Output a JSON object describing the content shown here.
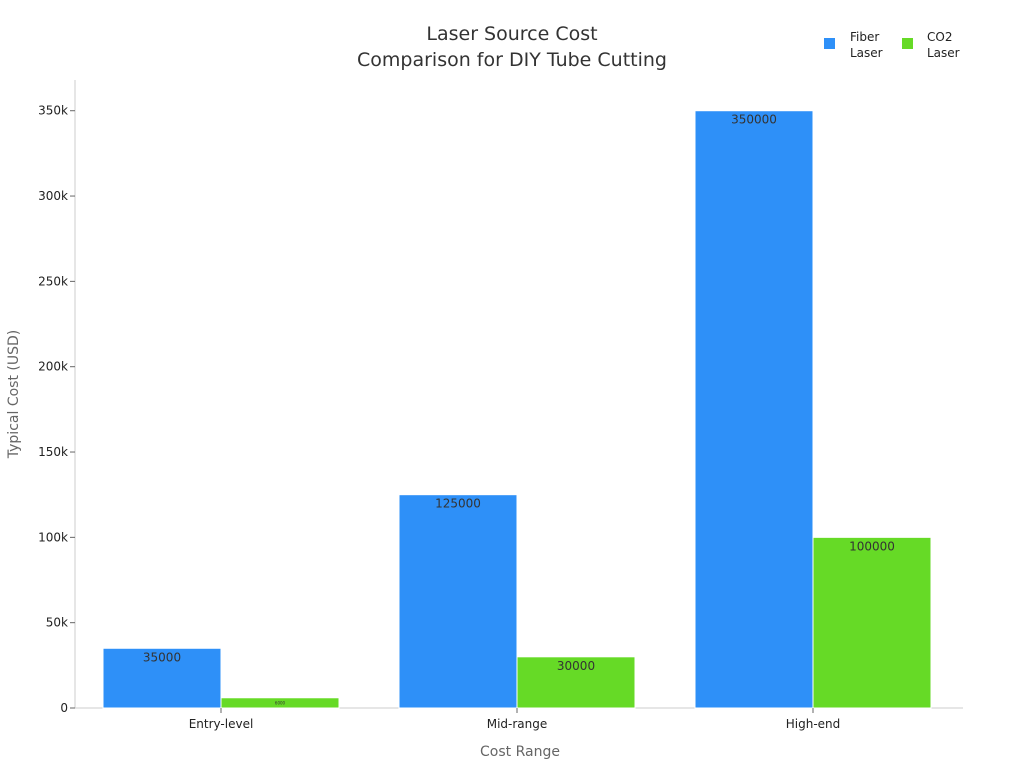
{
  "chart_data": {
    "type": "bar",
    "title_lines": [
      "Laser Source Cost",
      "Comparison for DIY Tube Cutting"
    ],
    "xlabel": "Cost Range",
    "ylabel": "Typical Cost (USD)",
    "categories": [
      "Entry-level",
      "Mid-range",
      "High-end"
    ],
    "series": [
      {
        "name_lines": [
          "Fiber",
          "Laser"
        ],
        "values": [
          35000,
          125000,
          350000
        ],
        "labels": [
          "35000",
          "125000",
          "350000"
        ],
        "color": "#2E90F8"
      },
      {
        "name_lines": [
          "CO2",
          "Laser"
        ],
        "values": [
          6000,
          30000,
          100000
        ],
        "labels": [
          "6000",
          "30000",
          "100000"
        ],
        "color": "#66DA26"
      }
    ],
    "ylim": [
      0,
      368000
    ],
    "yticks": [
      0,
      50000,
      100000,
      150000,
      200000,
      250000,
      300000,
      350000
    ],
    "ytick_labels": [
      "0",
      "50k",
      "100k",
      "150k",
      "200k",
      "250k",
      "300k",
      "350k"
    ],
    "legend_position": "top-right",
    "grid": false
  }
}
